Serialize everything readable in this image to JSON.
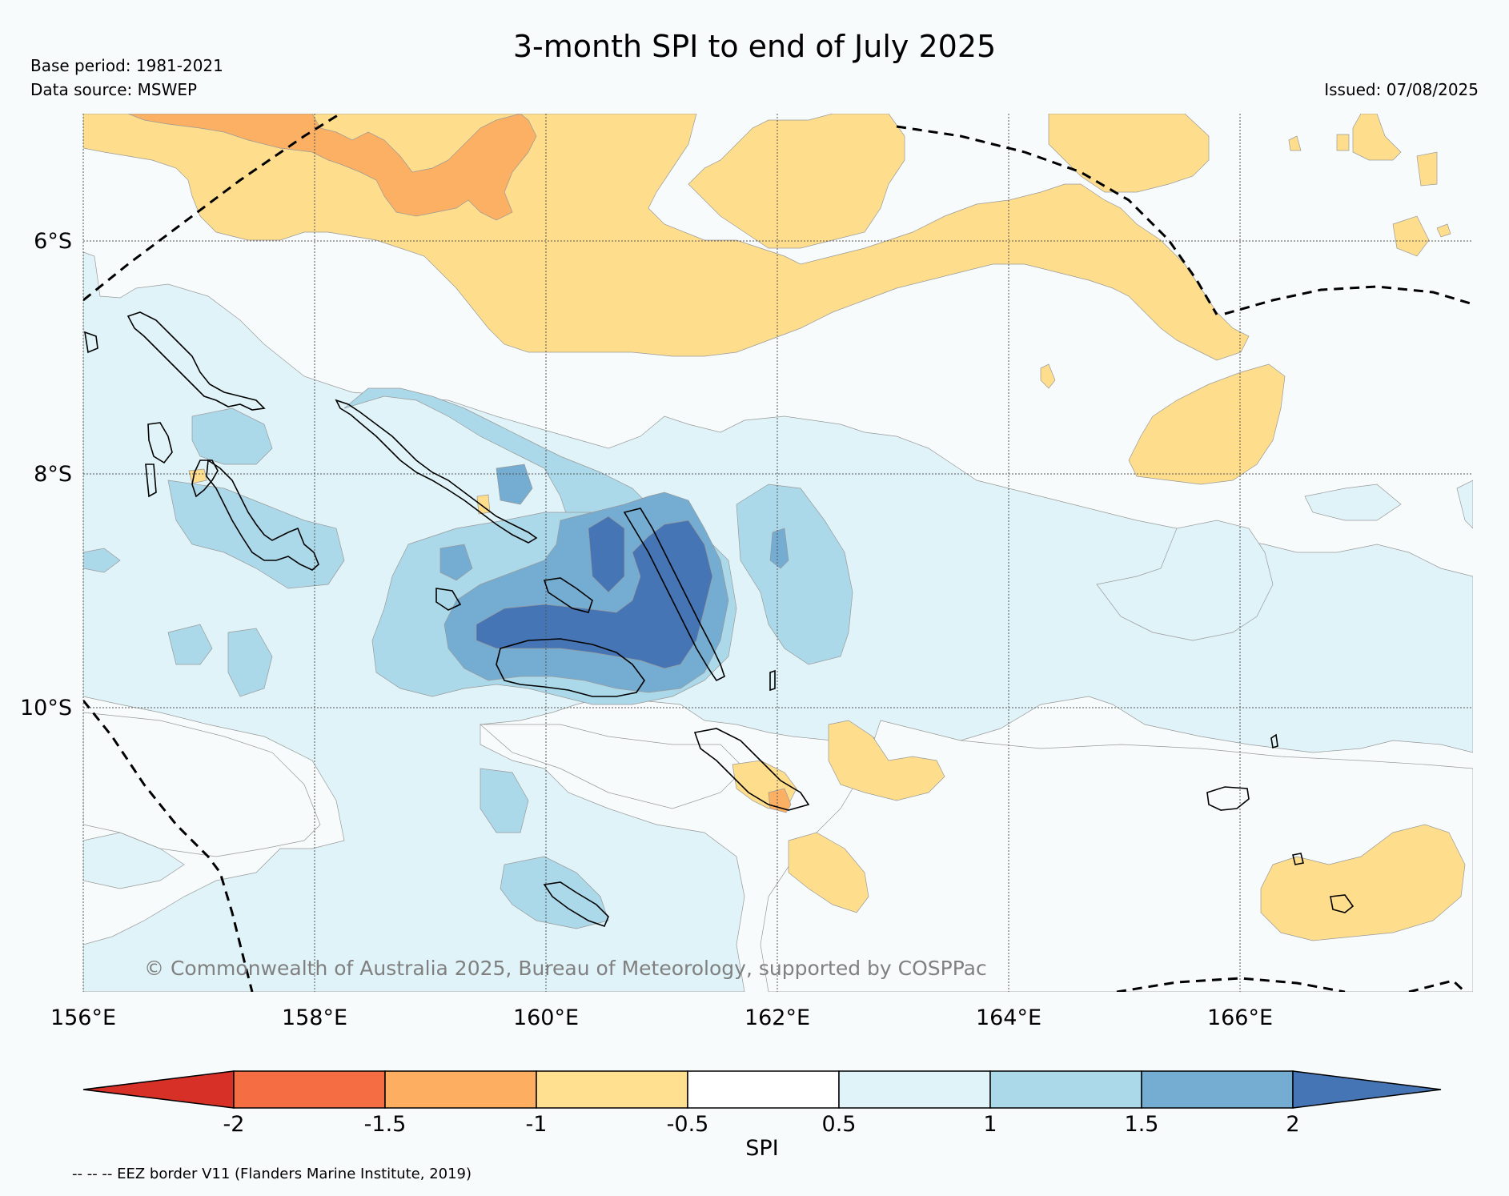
{
  "header": {
    "title": "3-month SPI to end of July 2025",
    "base_period": "Base period: 1981-2021",
    "data_source": "Data source: MSWEP",
    "issued": "Issued: 07/08/2025"
  },
  "map": {
    "lat_labels": [
      "6°S",
      "8°S",
      "10°S"
    ],
    "lon_labels": [
      "156°E",
      "158°E",
      "160°E",
      "162°E",
      "164°E",
      "166°E"
    ],
    "copyright": "© Commonwealth of Australia 2025, Bureau of Meteorology, supported by COSPPac",
    "colors": {
      "orange": "#fcb063",
      "yellow": "#fede8c",
      "pale_blue": "#e0f3f8",
      "light_blue": "#abd9e9",
      "mid_blue": "#74add1",
      "dark_blue": "#4575b4",
      "ocean": "#f7fbfc"
    }
  },
  "colorbar": {
    "label": "SPI",
    "ticks": [
      "-2",
      "-1.5",
      "-1",
      "-0.5",
      "0.5",
      "1",
      "1.5",
      "2"
    ],
    "colors": [
      "#d73027",
      "#f46d43",
      "#fdae61",
      "#fee090",
      "#ffffff",
      "#e0f3f8",
      "#abd9e9",
      "#74add1",
      "#4575b4"
    ]
  },
  "footer": {
    "eez_note": "-- -- -- EEZ border V11 (Flanders Marine Institute, 2019)"
  }
}
